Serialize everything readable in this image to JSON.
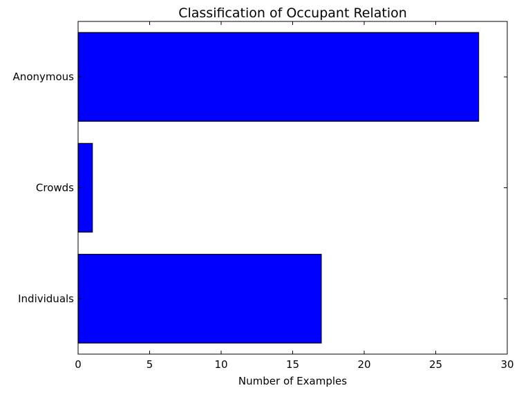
{
  "chart_data": {
    "type": "bar",
    "orientation": "horizontal",
    "title": "Classification of Occupant Relation",
    "xlabel": "Number of Examples",
    "ylabel": "",
    "categories": [
      "Anonymous",
      "Crowds",
      "Individuals"
    ],
    "values": [
      28,
      1,
      17
    ],
    "xlim": [
      0,
      30
    ],
    "xticks": [
      0,
      5,
      10,
      15,
      20,
      25,
      30
    ],
    "grid": false,
    "legend": "none",
    "bar_color": "#0000ff",
    "edge_color": "#000000"
  }
}
